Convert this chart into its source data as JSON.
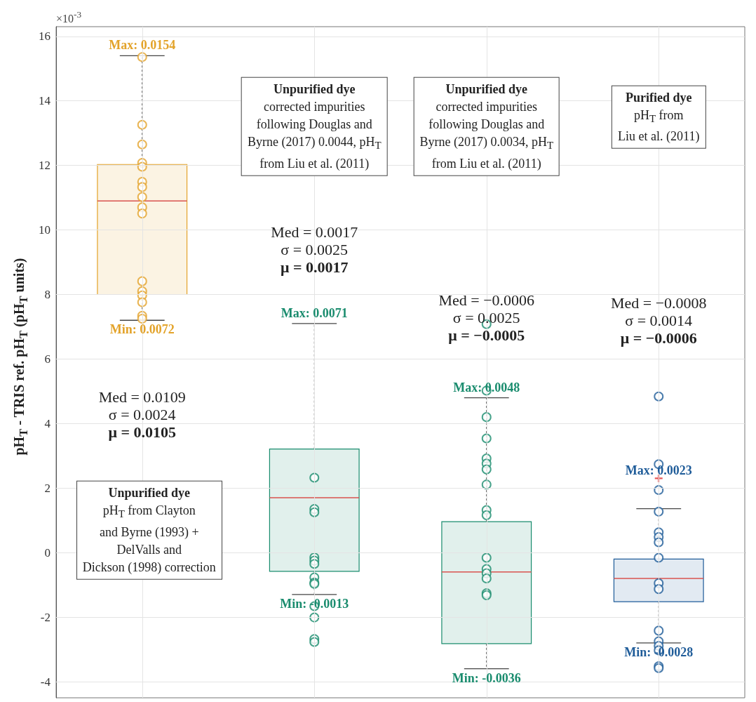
{
  "chart_data": {
    "type": "box",
    "ylabel": "pH$_{T}$ - TRIS ref. pH$_{T}$ (pH$_{T}$ units)",
    "categories": [
      null,
      null,
      null,
      null
    ],
    "colors": [
      "#e3a32a",
      "#1a8c6e",
      "#1a8c6e",
      "#1f5c99"
    ],
    "boxes": [
      {
        "low": 7.2,
        "q1": 8.0,
        "median": 10.9,
        "q3": 12.03,
        "high": 15.4
      },
      {
        "low": -1.3,
        "q1": -0.58,
        "median": 1.7,
        "q3": 3.21,
        "high": 7.1
      },
      {
        "low": -3.6,
        "q1": -2.82,
        "median": -0.6,
        "q3": 0.96,
        "high": 4.8
      },
      {
        "low": -2.8,
        "q1": -1.52,
        "median": -0.8,
        "q3": -0.2,
        "high": 1.36,
        "outliers": [
          2.3
        ]
      }
    ],
    "series": [
      {
        "type": "scatter",
        "colors": [
          "#e3a32a",
          "#1a8c6e",
          "#1a8c6e",
          "#1f5c99"
        ],
        "values": [
          15.36,
          2.32,
          7.08,
          4.84
        ]
      },
      {
        "type": "scatter",
        "colors": [
          "#e3a32a",
          "#1a8c6e",
          "#1a8c6e",
          "#1f5c99"
        ],
        "values": [
          13.26,
          1.35,
          5.02,
          2.74
        ]
      },
      {
        "type": "scatter",
        "colors": [
          "#e3a32a",
          "#1a8c6e",
          "#1a8c6e",
          "#1f5c99"
        ],
        "values": [
          12.65,
          1.25,
          4.2,
          1.94
        ]
      },
      {
        "type": "scatter",
        "colors": [
          "#e3a32a",
          "#1a8c6e",
          "#1a8c6e",
          "#1f5c99"
        ],
        "values": [
          12.08,
          -0.15,
          3.54,
          1.27
        ]
      },
      {
        "type": "scatter",
        "colors": [
          "#e3a32a",
          "#1a8c6e",
          "#1a8c6e",
          "#1f5c99"
        ],
        "values": [
          11.96,
          -0.25,
          2.92,
          0.63
        ]
      },
      {
        "type": "scatter",
        "colors": [
          "#e3a32a",
          "#1a8c6e",
          "#1a8c6e",
          "#1f5c99"
        ],
        "values": [
          11.49,
          -0.35,
          2.76,
          0.48
        ]
      },
      {
        "type": "scatter",
        "colors": [
          "#e3a32a",
          "#1a8c6e",
          "#1a8c6e",
          "#1f5c99"
        ],
        "values": [
          11.33,
          -0.77,
          2.58,
          0.32
        ]
      },
      {
        "type": "scatter",
        "colors": [
          "#e3a32a",
          "#1a8c6e",
          "#1a8c6e",
          "#1f5c99"
        ],
        "values": [
          11.02,
          -0.93,
          2.11,
          -0.16
        ]
      },
      {
        "type": "scatter",
        "colors": [
          "#e3a32a",
          "#1a8c6e",
          "#1a8c6e",
          "#1f5c99"
        ],
        "values": [
          10.7,
          -0.97,
          1.32,
          -0.95
        ]
      },
      {
        "type": "scatter",
        "colors": [
          "#e3a32a",
          "#1a8c6e",
          "#1a8c6e",
          "#1f5c99"
        ],
        "values": [
          10.51,
          -1.66,
          1.16,
          -1.13
        ]
      },
      {
        "type": "scatter",
        "colors": [
          "#e3a32a",
          "#1a8c6e",
          "#1a8c6e",
          "#1f5c99"
        ],
        "values": [
          8.41,
          -2.01,
          -0.16,
          -2.42
        ]
      },
      {
        "type": "scatter",
        "colors": [
          "#e3a32a",
          "#1a8c6e",
          "#1a8c6e",
          "#1f5c99"
        ],
        "values": [
          8.1,
          -2.68,
          -0.51,
          -2.75
        ]
      },
      {
        "type": "scatter",
        "colors": [
          "#e3a32a",
          "#1a8c6e",
          "#1a8c6e",
          "#1f5c99"
        ],
        "values": [
          7.97,
          -2.77,
          -0.64,
          -2.89
        ]
      },
      {
        "type": "scatter",
        "colors": [
          "#e3a32a",
          null,
          "#1a8c6e",
          "#1f5c99"
        ],
        "values": [
          7.76,
          null,
          -0.8,
          -3.03
        ]
      },
      {
        "type": "scatter",
        "colors": [
          "#e3a32a",
          null,
          "#1a8c6e",
          "#1f5c99"
        ],
        "values": [
          7.34,
          null,
          -1.26,
          -3.52
        ]
      },
      {
        "type": "scatter",
        "colors": [
          "#e3a32a",
          null,
          "#1a8c6e",
          "#1f5c99"
        ],
        "values": [
          7.25,
          null,
          -1.32,
          -3.58
        ]
      }
    ],
    "marker": "circle",
    "ylim": [
      -4.5,
      16.3
    ],
    "yticks": [
      -4,
      -2,
      0,
      2,
      4,
      6,
      8,
      10,
      12,
      14,
      16
    ],
    "tick_labels": "y",
    "grid": true,
    "annotations": [
      "×10$^{-3}$",
      "Med = 0.0109\nσ = 0.0024\nμ = 0.0105",
      "Unpurified dye\npH$_{T}$ from Clayton\nand Byrne (1993) +\nDelValls and\nDickson (1998) correction",
      "Med = 0.0017\nσ = 0.0025\nμ = 0.0017",
      "Unpurified dye\ncorrected impurities\nfollowing Douglas and\nByrne (2017) 0.0044, pH$_{T}$\nfrom Liu et al. (2011)",
      "Med = −0.0006\nσ = 0.0025\nμ = −0.0005",
      "Unpurified dye\ncorrected impurities\nfollowing Douglas and\nByrne (2017) 0.0034, pH$_{T}$\nfrom Liu et al. (2011)",
      "Med = −0.0008\nσ = 0.0014\nμ = −0.0006",
      "Purified dye\npH$_{T}$ from\nLiu et al. (2011)",
      {
        "text": "Max: 0.0154",
        "y": 15.4
      },
      {
        "text": "Min: 0.0072",
        "y": 7.2
      },
      {
        "text": "Max: 0.0071",
        "y": 7.1
      },
      {
        "text": "Min: -0.0013",
        "y": -1.3
      },
      {
        "text": "Max: 0.0048",
        "y": 4.8
      },
      {
        "text": "Min: -0.0036",
        "y": -3.6
      },
      "Max: 0.0023",
      {
        "text": "Min: -0.0028",
        "y": -2.8
      }
    ]
  }
}
